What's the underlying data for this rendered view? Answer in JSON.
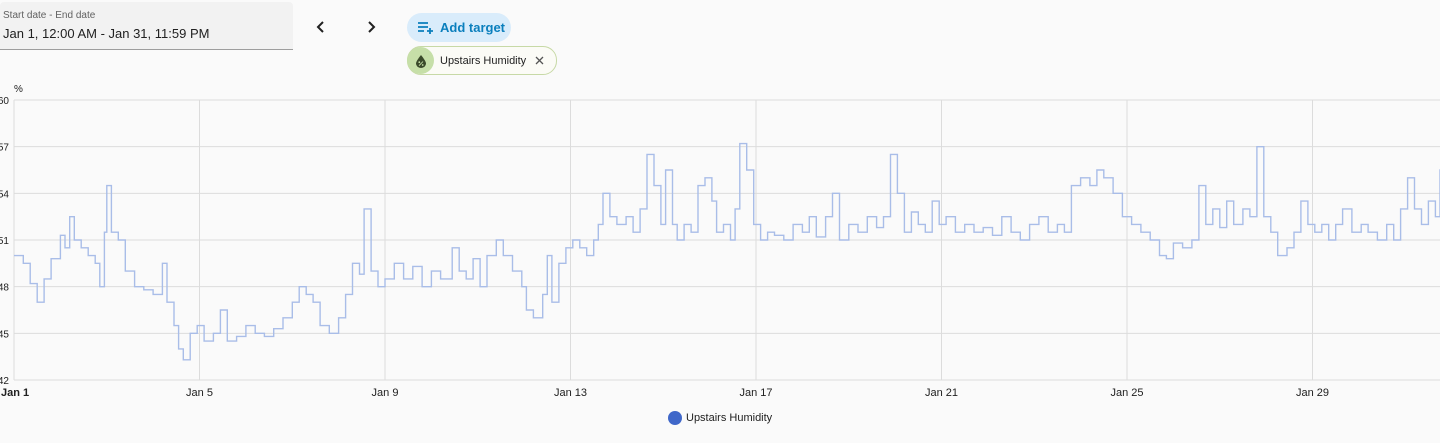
{
  "date_picker": {
    "label": "Start date - End date",
    "value": "Jan 1, 12:00 AM - Jan 31, 11:59 PM"
  },
  "nav": {
    "prev_icon": "chevron-left-icon",
    "next_icon": "chevron-right-icon"
  },
  "add_target": {
    "label": "Add target",
    "icon": "playlist-add-icon"
  },
  "chip": {
    "label": "Upstairs Humidity",
    "icon": "water-percent-icon",
    "close_icon": "close-icon"
  },
  "colors": {
    "line": "#a9bde8",
    "line_recent": "#3f67c9",
    "legend": "#3f67c9",
    "grid": "#dcdcdc",
    "chip_bg": "#c6dfa8"
  },
  "chart_data": {
    "type": "line",
    "unit_label": "%",
    "ylim": [
      42,
      60
    ],
    "yticks": [
      "60",
      "57",
      "54",
      "51",
      "48",
      "45",
      "42"
    ],
    "xlim": [
      "Jan 1",
      "Feb 1"
    ],
    "xticks": [
      "Jan 1",
      "Jan 5",
      "Jan 9",
      "Jan 13",
      "Jan 17",
      "Jan 21",
      "Jan 25",
      "Jan 29"
    ],
    "grid": true,
    "legend_position": "bottom",
    "series": [
      {
        "name": "Upstairs Humidity",
        "step": true,
        "points": [
          [
            0.0,
            50.0
          ],
          [
            0.2,
            49.5
          ],
          [
            0.35,
            48.2
          ],
          [
            0.5,
            47.0
          ],
          [
            0.65,
            48.5
          ],
          [
            0.8,
            49.8
          ],
          [
            1.0,
            51.3
          ],
          [
            1.1,
            50.5
          ],
          [
            1.2,
            52.5
          ],
          [
            1.3,
            51.0
          ],
          [
            1.45,
            50.5
          ],
          [
            1.6,
            50.0
          ],
          [
            1.75,
            49.5
          ],
          [
            1.85,
            48.0
          ],
          [
            1.95,
            51.5
          ],
          [
            2.0,
            54.5
          ],
          [
            2.1,
            51.5
          ],
          [
            2.25,
            51.0
          ],
          [
            2.4,
            49.0
          ],
          [
            2.6,
            48.0
          ],
          [
            2.8,
            47.8
          ],
          [
            3.0,
            47.5
          ],
          [
            3.2,
            49.5
          ],
          [
            3.3,
            47.0
          ],
          [
            3.45,
            45.5
          ],
          [
            3.55,
            44.0
          ],
          [
            3.65,
            43.3
          ],
          [
            3.8,
            45.0
          ],
          [
            3.95,
            45.5
          ],
          [
            4.1,
            44.5
          ],
          [
            4.3,
            45.0
          ],
          [
            4.45,
            46.5
          ],
          [
            4.6,
            44.5
          ],
          [
            4.8,
            44.8
          ],
          [
            5.0,
            45.5
          ],
          [
            5.2,
            45.0
          ],
          [
            5.4,
            44.8
          ],
          [
            5.6,
            45.3
          ],
          [
            5.8,
            46.0
          ],
          [
            6.0,
            47.0
          ],
          [
            6.15,
            48.0
          ],
          [
            6.3,
            47.5
          ],
          [
            6.45,
            47.0
          ],
          [
            6.6,
            45.5
          ],
          [
            6.8,
            45.0
          ],
          [
            7.0,
            46.0
          ],
          [
            7.15,
            47.5
          ],
          [
            7.3,
            49.5
          ],
          [
            7.45,
            48.8
          ],
          [
            7.55,
            53.0
          ],
          [
            7.7,
            49.0
          ],
          [
            7.85,
            48.0
          ],
          [
            8.0,
            48.5
          ],
          [
            8.2,
            49.5
          ],
          [
            8.4,
            48.5
          ],
          [
            8.6,
            49.3
          ],
          [
            8.8,
            48.0
          ],
          [
            9.0,
            49.0
          ],
          [
            9.2,
            48.5
          ],
          [
            9.45,
            50.5
          ],
          [
            9.6,
            49.0
          ],
          [
            9.75,
            48.5
          ],
          [
            9.9,
            49.8
          ],
          [
            10.05,
            48.0
          ],
          [
            10.2,
            50.0
          ],
          [
            10.4,
            51.0
          ],
          [
            10.55,
            50.0
          ],
          [
            10.75,
            49.0
          ],
          [
            10.95,
            48.0
          ],
          [
            11.05,
            46.5
          ],
          [
            11.2,
            46.0
          ],
          [
            11.4,
            47.5
          ],
          [
            11.5,
            50.0
          ],
          [
            11.6,
            47.0
          ],
          [
            11.75,
            49.5
          ],
          [
            11.9,
            50.5
          ],
          [
            12.05,
            51.0
          ],
          [
            12.2,
            50.5
          ],
          [
            12.35,
            50.0
          ],
          [
            12.5,
            51.0
          ],
          [
            12.6,
            52.0
          ],
          [
            12.7,
            54.0
          ],
          [
            12.85,
            52.5
          ],
          [
            13.0,
            52.0
          ],
          [
            13.2,
            52.5
          ],
          [
            13.35,
            51.5
          ],
          [
            13.5,
            53.0
          ],
          [
            13.65,
            56.5
          ],
          [
            13.8,
            54.5
          ],
          [
            13.95,
            52.0
          ],
          [
            14.05,
            55.5
          ],
          [
            14.2,
            52.0
          ],
          [
            14.3,
            51.0
          ],
          [
            14.45,
            52.0
          ],
          [
            14.6,
            51.5
          ],
          [
            14.75,
            54.5
          ],
          [
            14.9,
            55.0
          ],
          [
            15.05,
            53.5
          ],
          [
            15.15,
            51.5
          ],
          [
            15.3,
            52.0
          ],
          [
            15.45,
            51.0
          ],
          [
            15.55,
            53.0
          ],
          [
            15.65,
            57.2
          ],
          [
            15.8,
            55.5
          ],
          [
            15.95,
            52.0
          ],
          [
            16.1,
            51.0
          ],
          [
            16.25,
            51.5
          ],
          [
            16.4,
            51.3
          ],
          [
            16.6,
            51.0
          ],
          [
            16.8,
            52.0
          ],
          [
            17.0,
            51.5
          ],
          [
            17.15,
            52.5
          ],
          [
            17.3,
            51.2
          ],
          [
            17.5,
            52.5
          ],
          [
            17.65,
            54.0
          ],
          [
            17.8,
            51.0
          ],
          [
            18.0,
            52.0
          ],
          [
            18.2,
            51.5
          ],
          [
            18.4,
            52.5
          ],
          [
            18.6,
            51.8
          ],
          [
            18.75,
            52.5
          ],
          [
            18.9,
            56.5
          ],
          [
            19.05,
            54.0
          ],
          [
            19.2,
            51.5
          ],
          [
            19.35,
            52.8
          ],
          [
            19.5,
            52.0
          ],
          [
            19.65,
            51.5
          ],
          [
            19.8,
            53.5
          ],
          [
            19.95,
            52.0
          ],
          [
            20.1,
            52.5
          ],
          [
            20.3,
            51.5
          ],
          [
            20.5,
            52.0
          ],
          [
            20.7,
            51.5
          ],
          [
            20.9,
            51.8
          ],
          [
            21.1,
            51.3
          ],
          [
            21.3,
            52.5
          ],
          [
            21.5,
            51.5
          ],
          [
            21.7,
            51.0
          ],
          [
            21.9,
            52.0
          ],
          [
            22.1,
            52.5
          ],
          [
            22.3,
            51.5
          ],
          [
            22.5,
            52.0
          ],
          [
            22.65,
            51.5
          ],
          [
            22.8,
            54.5
          ],
          [
            23.0,
            55.0
          ],
          [
            23.2,
            54.5
          ],
          [
            23.35,
            55.5
          ],
          [
            23.5,
            55.0
          ],
          [
            23.7,
            54.0
          ],
          [
            23.9,
            52.5
          ],
          [
            24.1,
            52.0
          ],
          [
            24.3,
            51.5
          ],
          [
            24.5,
            51.0
          ],
          [
            24.7,
            50.0
          ],
          [
            24.85,
            49.8
          ],
          [
            25.0,
            50.8
          ],
          [
            25.2,
            50.5
          ],
          [
            25.4,
            51.0
          ],
          [
            25.55,
            54.5
          ],
          [
            25.7,
            52.0
          ],
          [
            25.85,
            53.0
          ],
          [
            26.0,
            51.8
          ],
          [
            26.15,
            53.5
          ],
          [
            26.3,
            52.0
          ],
          [
            26.5,
            53.0
          ],
          [
            26.65,
            52.5
          ],
          [
            26.8,
            57.0
          ],
          [
            26.95,
            52.5
          ],
          [
            27.1,
            51.5
          ],
          [
            27.25,
            50.0
          ],
          [
            27.45,
            50.5
          ],
          [
            27.6,
            51.5
          ],
          [
            27.75,
            53.5
          ],
          [
            27.9,
            52.0
          ],
          [
            28.05,
            51.5
          ],
          [
            28.2,
            52.0
          ],
          [
            28.35,
            51.0
          ],
          [
            28.5,
            52.0
          ],
          [
            28.65,
            53.0
          ],
          [
            28.85,
            51.5
          ],
          [
            29.05,
            52.0
          ],
          [
            29.2,
            51.5
          ],
          [
            29.4,
            51.0
          ],
          [
            29.6,
            52.0
          ],
          [
            29.75,
            51.0
          ],
          [
            29.9,
            53.0
          ],
          [
            30.05,
            55.0
          ],
          [
            30.2,
            53.0
          ],
          [
            30.35,
            52.0
          ],
          [
            30.5,
            53.5
          ],
          [
            30.65,
            52.5
          ],
          [
            30.75,
            55.5
          ],
          [
            30.9,
            52.5
          ]
        ],
        "recent_points": [
          [
            30.9,
            52.5
          ],
          [
            31.0,
            52.0
          ],
          [
            31.1,
            53.0
          ],
          [
            31.2,
            51.5
          ],
          [
            31.35,
            52.8
          ],
          [
            31.5,
            52.5
          ],
          [
            31.65,
            51.0
          ],
          [
            31.8,
            52.5
          ],
          [
            31.9,
            51.0
          ],
          [
            32.0,
            52.0
          ]
        ]
      }
    ]
  }
}
